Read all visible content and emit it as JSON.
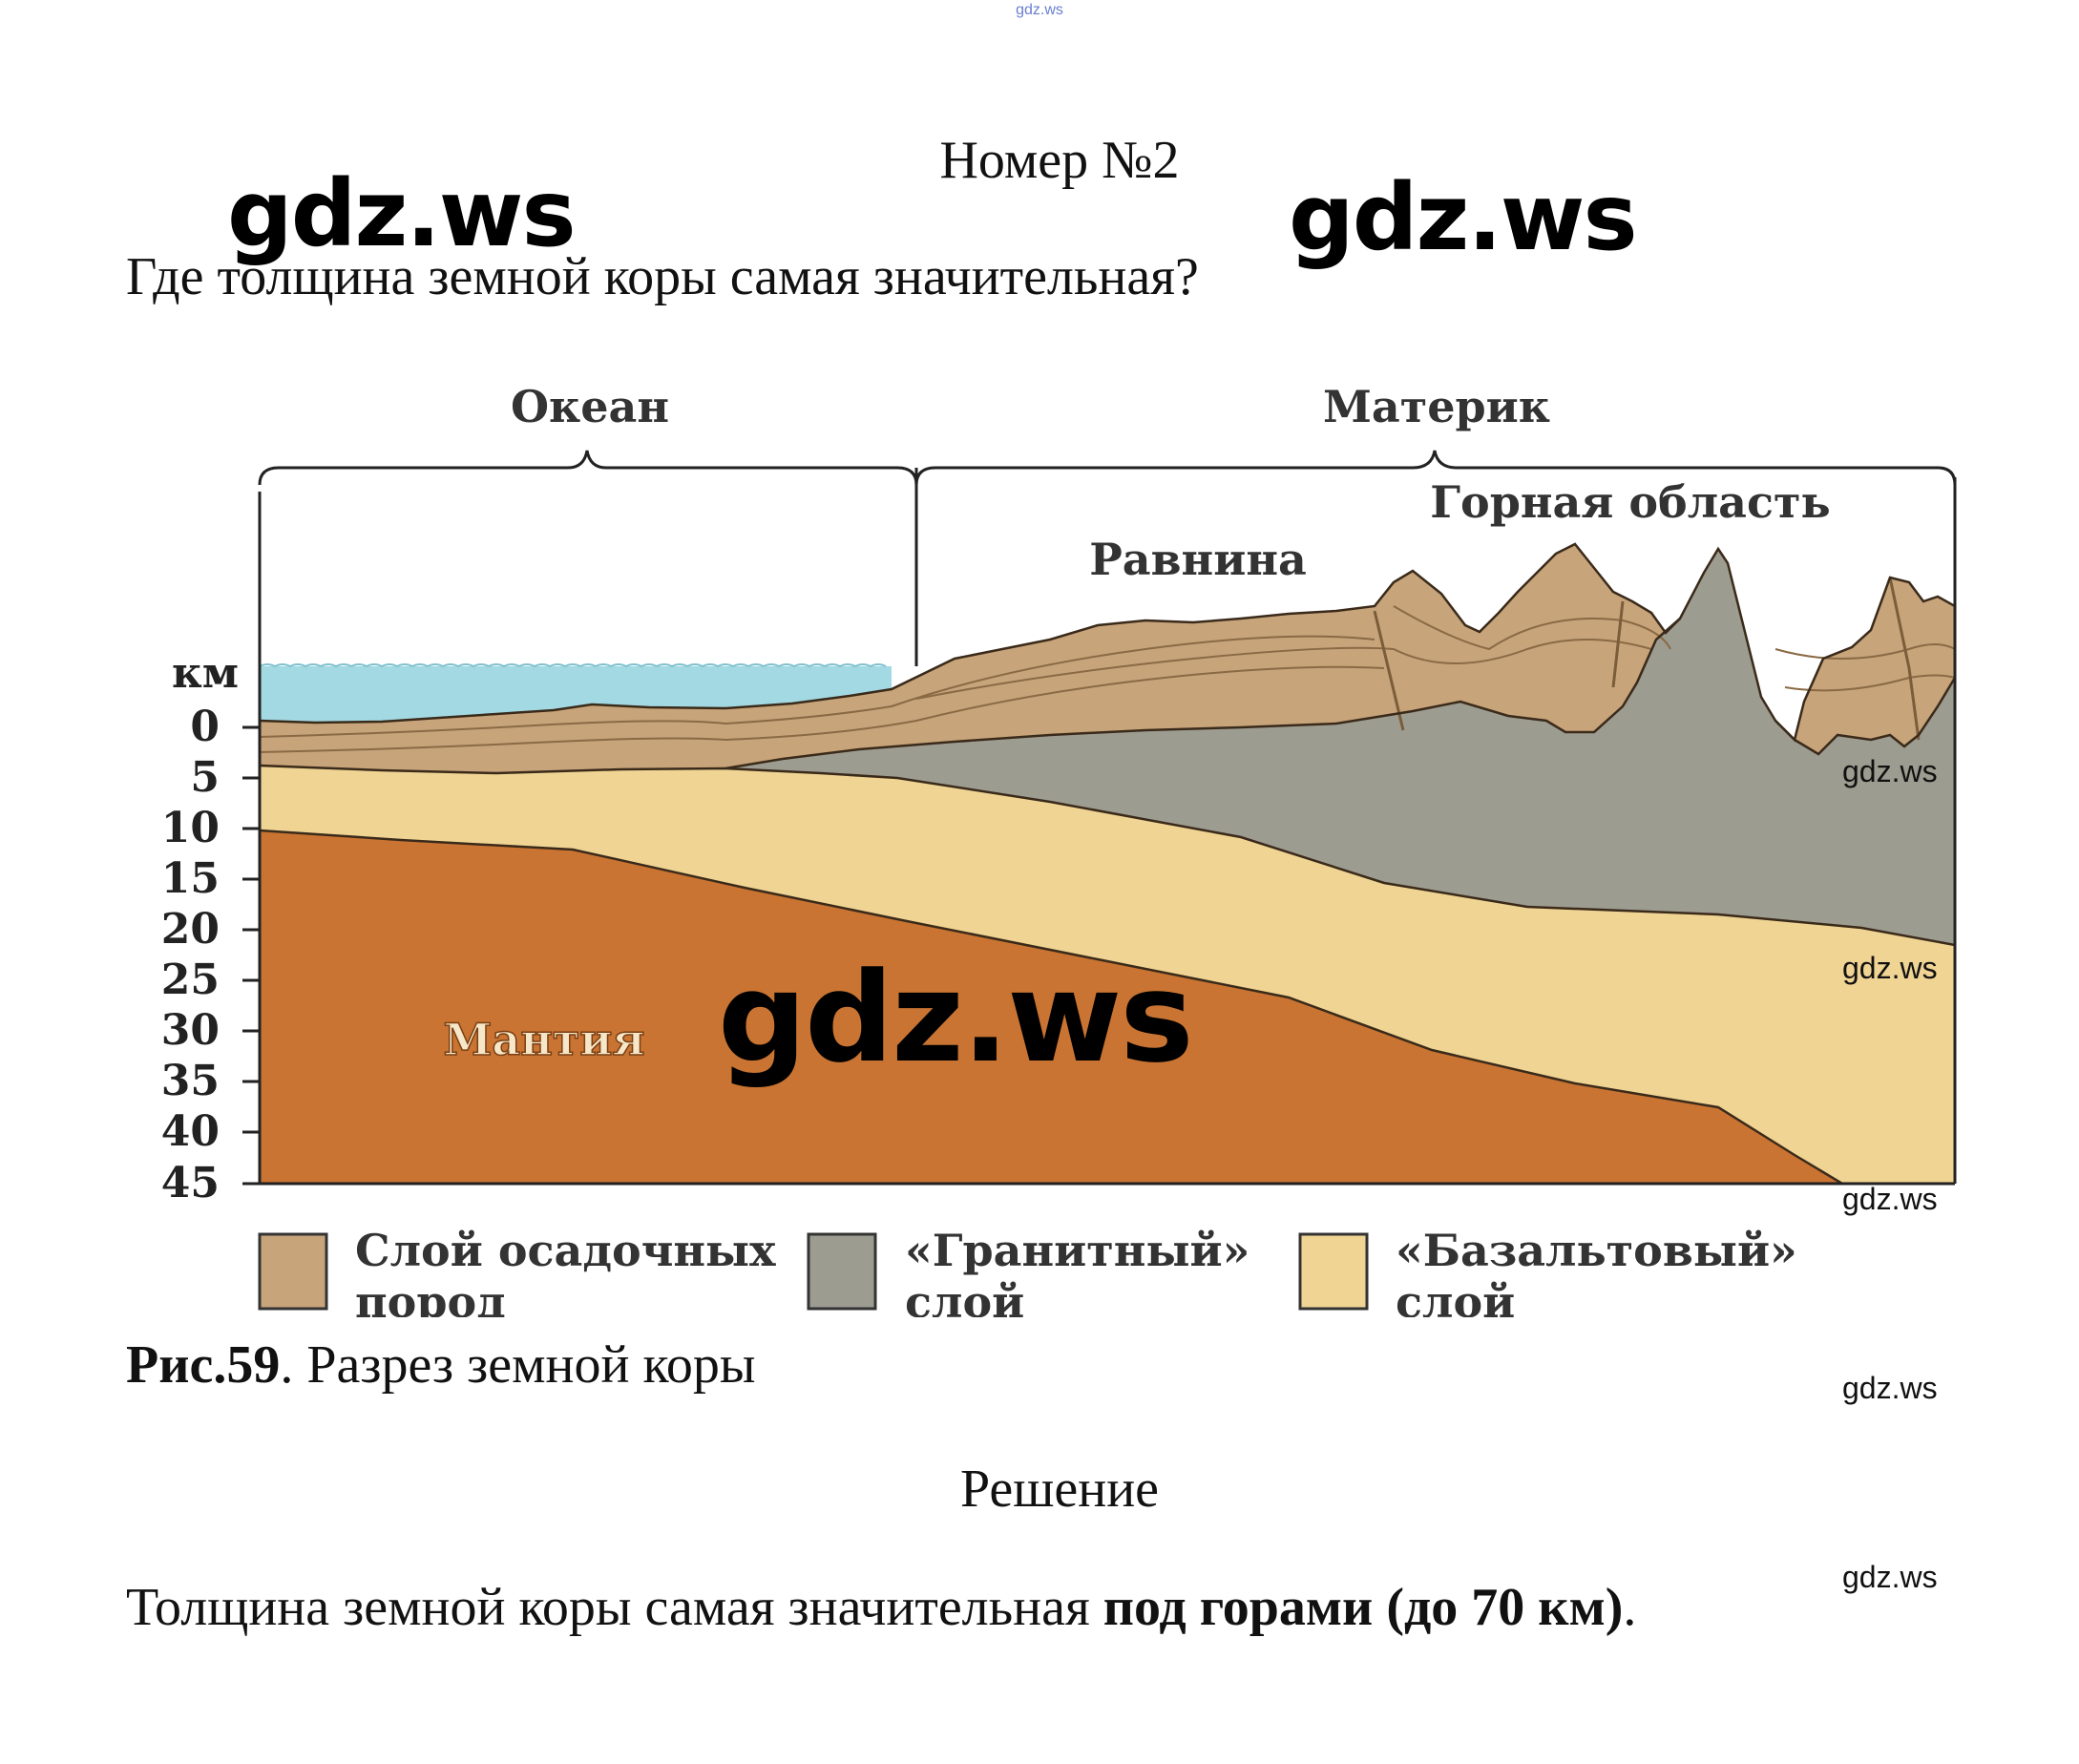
{
  "header": {
    "top_mark": "gdz.ws"
  },
  "task": {
    "title": "Номер №2",
    "question": "Где толщина земной коры самая значительная?"
  },
  "watermarks": {
    "big": "gdz.ws",
    "small": "gdz.ws"
  },
  "figure": {
    "labels": {
      "ocean": "Океан",
      "mainland": "Материк",
      "mountains": "Горная область",
      "plain": "Равнина",
      "mantle": "Мантия"
    },
    "axis": {
      "unit": "км",
      "ticks": [
        "0",
        "5",
        "10",
        "15",
        "20",
        "25",
        "30",
        "35",
        "40",
        "45"
      ]
    },
    "legend": [
      {
        "line1": "Слой осадочных",
        "line2": "пород",
        "color": "#c7a47a"
      },
      {
        "line1": "«Гранитный»",
        "line2": "слой",
        "color": "#9d9c90"
      },
      {
        "line1": "«Базальтовый»",
        "line2": "слой",
        "color": "#f0d493"
      }
    ],
    "colors": {
      "water": "#a3d9e3",
      "sediment": "#c7a47a",
      "granite": "#9d9c90",
      "basalt": "#f0d493",
      "mantle": "#c97432"
    },
    "caption_label": "Рис.59",
    "caption_text": ". Разрез земной коры"
  },
  "solution": {
    "heading": "Решение",
    "answer_prefix": "Толщина земной коры самая значительная ",
    "answer_bold": "под горами (до 70 км)",
    "answer_suffix": "."
  }
}
